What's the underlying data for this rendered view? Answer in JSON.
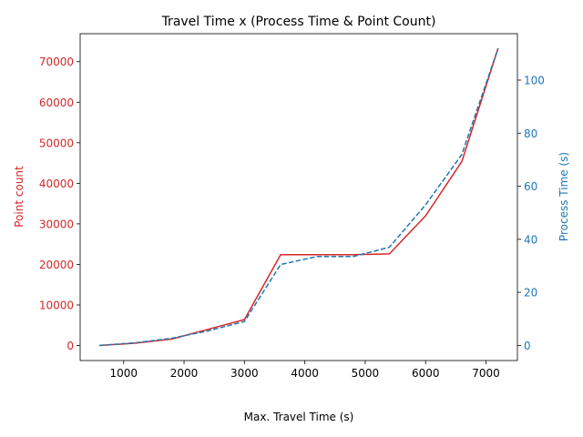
{
  "chart_data": {
    "type": "line",
    "title": "Travel Time x (Process Time & Point Count)",
    "xlabel": "Max. Travel Time (s)",
    "x": [
      600,
      1200,
      1800,
      2400,
      3000,
      3600,
      4200,
      4800,
      5400,
      6000,
      6600,
      7200
    ],
    "xlim": [
      280,
      7520
    ],
    "xticks": [
      1000,
      2000,
      3000,
      4000,
      5000,
      6000,
      7000
    ],
    "left_axis": {
      "label": "Point count",
      "color": "#d62728",
      "ylim": [
        -3700,
        76900
      ],
      "ticks": [
        0,
        10000,
        20000,
        30000,
        40000,
        50000,
        60000,
        70000
      ]
    },
    "right_axis": {
      "label": "Process Time (s)",
      "color": "#1f77b4",
      "ylim": [
        -5.7,
        117.5
      ],
      "ticks": [
        0,
        20,
        40,
        60,
        80,
        100
      ]
    },
    "series": [
      {
        "axis": "left",
        "color": "#d62728",
        "style": "solid",
        "values": [
          0,
          600,
          1600,
          4000,
          6400,
          22400,
          22400,
          22400,
          22600,
          32000,
          45400,
          73300
        ]
      },
      {
        "axis": "right",
        "color": "#1f77b4",
        "style": "dashed",
        "values": [
          0,
          1,
          2.7,
          5.5,
          9,
          30.5,
          33.5,
          33.5,
          37,
          53,
          72,
          112
        ]
      }
    ]
  }
}
